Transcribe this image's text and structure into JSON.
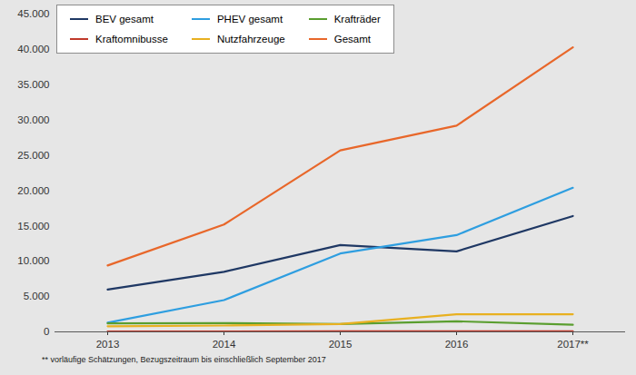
{
  "chart_data": {
    "type": "line",
    "categories": [
      "2013",
      "2014",
      "2015",
      "2016",
      "2017**"
    ],
    "series": [
      {
        "name": "BEV gesamt",
        "color": "#1f3864",
        "values": [
          6000,
          8500,
          12300,
          11400,
          16400
        ]
      },
      {
        "name": "PHEV gesamt",
        "color": "#2e9ee0",
        "values": [
          1300,
          4500,
          11100,
          13700,
          20400
        ]
      },
      {
        "name": "Krafträder",
        "color": "#5a9e2f",
        "values": [
          1200,
          1250,
          1100,
          1500,
          1000
        ]
      },
      {
        "name": "Kraftomnibusse",
        "color": "#c0392b",
        "values": [
          50,
          60,
          70,
          80,
          80
        ]
      },
      {
        "name": "Nutzfahrzeuge",
        "color": "#e8b020",
        "values": [
          800,
          900,
          1100,
          2500,
          2500
        ]
      },
      {
        "name": "Gesamt",
        "color": "#e8672a",
        "values": [
          9400,
          15200,
          25700,
          29200,
          40300
        ]
      }
    ],
    "ylim": [
      0,
      45000
    ],
    "yticks": [
      0,
      {
        "value": 5000,
        "label": "5.000"
      },
      {
        "value": 10000,
        "label": "10.000"
      },
      {
        "value": 15000,
        "label": "15.000"
      },
      {
        "value": 20000,
        "label": "20.000"
      },
      {
        "value": 25000,
        "label": "25.000"
      },
      {
        "value": 30000,
        "label": "30.000"
      },
      {
        "value": 35000,
        "label": "35.000"
      },
      {
        "value": 40000,
        "label": "40.000"
      },
      {
        "value": 45000,
        "label": "45.000"
      }
    ],
    "grid": false,
    "legend": "top-left",
    "caption": "** vorläufige Schätzungen, Bezugszeitraum bis einschließlich September 2017"
  }
}
